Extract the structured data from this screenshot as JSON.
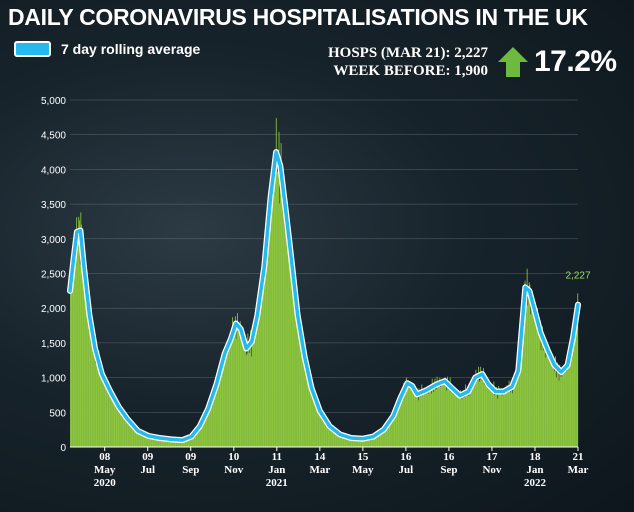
{
  "header": {
    "title": "DAILY CORONAVIRUS HOSPITALISATIONS IN THE UK",
    "legend_label": "7 day rolling average",
    "stat_line1": "HOSPS (MAR 21): 2,227",
    "stat_line2": "WEEK BEFORE: 1,900",
    "change": "17.2%"
  },
  "colors": {
    "bars": "#8dc63f",
    "line": "#26b9f0",
    "arrow": "#6dba3f",
    "label_green": "#9be05a"
  },
  "chart_data": {
    "type": "bar",
    "title": "DAILY CORONAVIRUS HOSPITALISATIONS IN THE UK",
    "xlabel": "",
    "ylabel": "",
    "ylim": [
      0,
      5000
    ],
    "yticks": [
      0,
      500,
      1000,
      1500,
      2000,
      2500,
      3000,
      3500,
      4000,
      4500,
      5000
    ],
    "ytick_labels": [
      "0",
      "500",
      "1,000",
      "1,500",
      "2,000",
      "2,500",
      "3,000",
      "3,500",
      "4,000",
      "4,500",
      "5,000"
    ],
    "x_start": "2020-03-19",
    "x_end": "2022-03-21",
    "grid": true,
    "xticks": [
      {
        "date": "2020-05-08",
        "day": "08",
        "month": "May",
        "year": "2020"
      },
      {
        "date": "2020-07-09",
        "day": "09",
        "month": "Jul",
        "year": ""
      },
      {
        "date": "2020-09-09",
        "day": "09",
        "month": "Sep",
        "year": ""
      },
      {
        "date": "2020-11-10",
        "day": "10",
        "month": "Nov",
        "year": ""
      },
      {
        "date": "2021-01-11",
        "day": "11",
        "month": "Jan",
        "year": "2021"
      },
      {
        "date": "2021-03-14",
        "day": "14",
        "month": "Mar",
        "year": ""
      },
      {
        "date": "2021-05-15",
        "day": "15",
        "month": "May",
        "year": ""
      },
      {
        "date": "2021-07-16",
        "day": "16",
        "month": "Jul",
        "year": ""
      },
      {
        "date": "2021-09-16",
        "day": "16",
        "month": "Sep",
        "year": ""
      },
      {
        "date": "2021-11-17",
        "day": "17",
        "month": "Nov",
        "year": ""
      },
      {
        "date": "2022-01-18",
        "day": "18",
        "month": "Jan",
        "year": "2022"
      },
      {
        "date": "2022-03-21",
        "day": "21",
        "month": "Mar",
        "year": ""
      }
    ],
    "series": [
      {
        "name": "7 day rolling average",
        "kind": "line",
        "points": [
          [
            "2020-03-19",
            2250
          ],
          [
            "2020-03-24",
            2700
          ],
          [
            "2020-03-29",
            3100
          ],
          [
            "2020-04-03",
            3120
          ],
          [
            "2020-04-08",
            2600
          ],
          [
            "2020-04-16",
            1900
          ],
          [
            "2020-04-24",
            1420
          ],
          [
            "2020-05-04",
            1050
          ],
          [
            "2020-05-16",
            800
          ],
          [
            "2020-05-28",
            580
          ],
          [
            "2020-06-10",
            400
          ],
          [
            "2020-06-25",
            230
          ],
          [
            "2020-07-10",
            160
          ],
          [
            "2020-07-26",
            130
          ],
          [
            "2020-08-12",
            110
          ],
          [
            "2020-08-28",
            100
          ],
          [
            "2020-09-10",
            150
          ],
          [
            "2020-09-22",
            300
          ],
          [
            "2020-10-04",
            550
          ],
          [
            "2020-10-16",
            900
          ],
          [
            "2020-10-28",
            1350
          ],
          [
            "2020-11-06",
            1560
          ],
          [
            "2020-11-13",
            1780
          ],
          [
            "2020-11-20",
            1700
          ],
          [
            "2020-11-28",
            1420
          ],
          [
            "2020-12-06",
            1520
          ],
          [
            "2020-12-14",
            1900
          ],
          [
            "2020-12-24",
            2600
          ],
          [
            "2021-01-02",
            3600
          ],
          [
            "2021-01-10",
            4250
          ],
          [
            "2021-01-16",
            4050
          ],
          [
            "2021-01-24",
            3400
          ],
          [
            "2021-02-01",
            2700
          ],
          [
            "2021-02-10",
            1900
          ],
          [
            "2021-02-20",
            1300
          ],
          [
            "2021-03-02",
            850
          ],
          [
            "2021-03-14",
            520
          ],
          [
            "2021-03-28",
            300
          ],
          [
            "2021-04-12",
            180
          ],
          [
            "2021-04-28",
            130
          ],
          [
            "2021-05-15",
            120
          ],
          [
            "2021-05-30",
            150
          ],
          [
            "2021-06-14",
            250
          ],
          [
            "2021-06-28",
            450
          ],
          [
            "2021-07-08",
            700
          ],
          [
            "2021-07-18",
            920
          ],
          [
            "2021-07-25",
            880
          ],
          [
            "2021-08-01",
            760
          ],
          [
            "2021-08-15",
            820
          ],
          [
            "2021-08-29",
            900
          ],
          [
            "2021-09-10",
            950
          ],
          [
            "2021-09-20",
            850
          ],
          [
            "2021-10-02",
            740
          ],
          [
            "2021-10-14",
            800
          ],
          [
            "2021-10-24",
            1000
          ],
          [
            "2021-11-03",
            1050
          ],
          [
            "2021-11-12",
            900
          ],
          [
            "2021-11-22",
            800
          ],
          [
            "2021-12-04",
            800
          ],
          [
            "2021-12-16",
            870
          ],
          [
            "2021-12-25",
            1100
          ],
          [
            "2021-12-30",
            1700
          ],
          [
            "2022-01-04",
            2300
          ],
          [
            "2022-01-10",
            2250
          ],
          [
            "2022-01-18",
            1950
          ],
          [
            "2022-01-26",
            1650
          ],
          [
            "2022-02-05",
            1400
          ],
          [
            "2022-02-15",
            1180
          ],
          [
            "2022-02-25",
            1080
          ],
          [
            "2022-03-06",
            1180
          ],
          [
            "2022-03-14",
            1580
          ],
          [
            "2022-03-21",
            2050
          ]
        ]
      }
    ],
    "annotations": [
      {
        "date": "2022-03-21",
        "value": 2227,
        "text": "2,227"
      }
    ]
  }
}
